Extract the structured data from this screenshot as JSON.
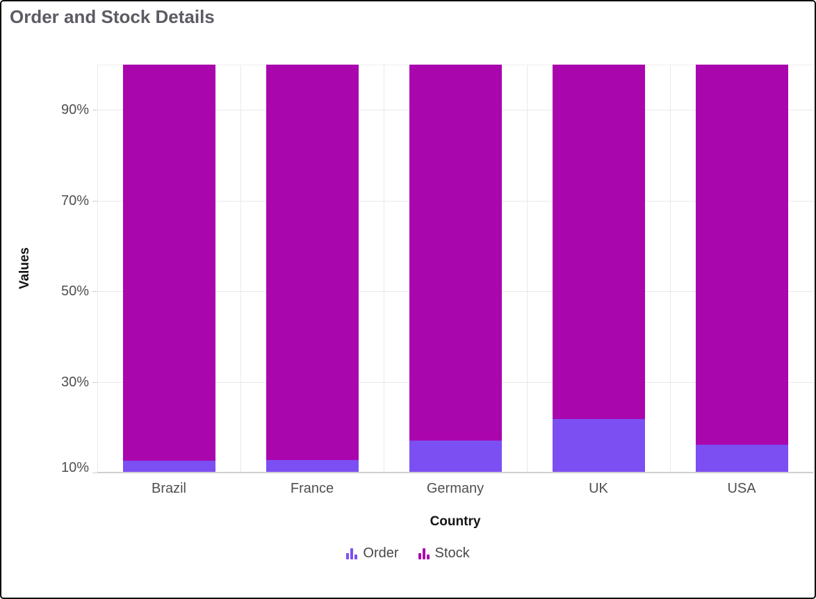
{
  "title": "Order and Stock Details",
  "chart_data": {
    "type": "bar",
    "subtype": "stacked-column-100",
    "title": "Order and Stock Details",
    "xlabel": "Country",
    "ylabel": "Values",
    "categories": [
      "Brazil",
      "France",
      "Germany",
      "UK",
      "USA"
    ],
    "series": [
      {
        "name": "Order",
        "color": "#7C4FF2",
        "percent_of_total": [
          12.6,
          12.8,
          17.1,
          21.8,
          16.1
        ]
      },
      {
        "name": "Stock",
        "color": "#AA06AD",
        "percent_of_total": [
          87.4,
          87.2,
          82.9,
          78.2,
          83.9
        ]
      }
    ],
    "y_axis": {
      "min": 10,
      "max": 100,
      "tick_values": [
        10,
        30,
        50,
        70,
        90
      ],
      "tick_labels": [
        "10%",
        "30%",
        "50%",
        "70%",
        "90%"
      ]
    },
    "grid": true,
    "legend_position": "bottom",
    "legend": [
      {
        "label": "Order",
        "icon": "mini-column-chart-icon",
        "color": "#7C4FF2"
      },
      {
        "label": "Stock",
        "icon": "mini-column-chart-icon",
        "color": "#AA06AD"
      }
    ],
    "colors": {
      "title_text": "#5D5A63",
      "axis_tick_label": "#4F4F4F",
      "axis_title_text": "#141414",
      "legend_text": "#474747",
      "gridline": "#E9E9E9",
      "axis_line": "#CFCFCF",
      "background": "#FFFFFF",
      "outer_border": "#0B0B0B"
    }
  }
}
